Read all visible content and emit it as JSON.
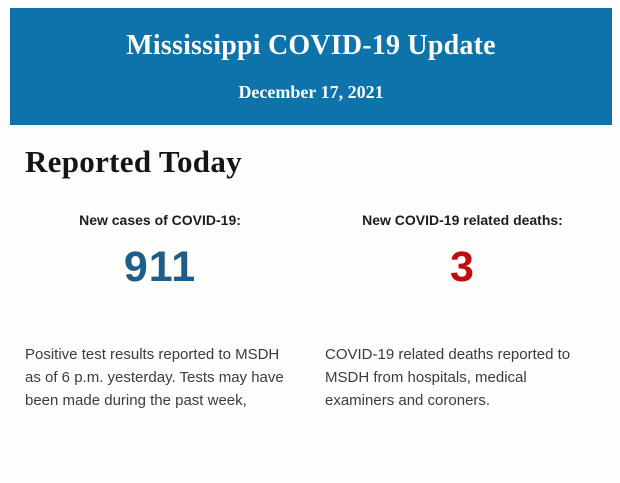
{
  "banner": {
    "title": "Mississippi COVID-19 Update",
    "date": "December 17, 2021",
    "bg_color": "#0e73ab",
    "text_color": "#fbfbf8"
  },
  "section": {
    "heading": "Reported Today"
  },
  "stats": [
    {
      "label": "New cases of COVID-19:",
      "value": "911",
      "value_color": "#1e5d87",
      "description": "Positive test results reported to MSDH as of 6 p.m. yesterday. Tests may have been made during the past week,"
    },
    {
      "label": "New COVID-19 related deaths:",
      "value": "3",
      "value_color": "#bf0d0d",
      "description": "COVID-19 related deaths reported to MSDH from hospitals, medical examiners and coroners."
    }
  ]
}
